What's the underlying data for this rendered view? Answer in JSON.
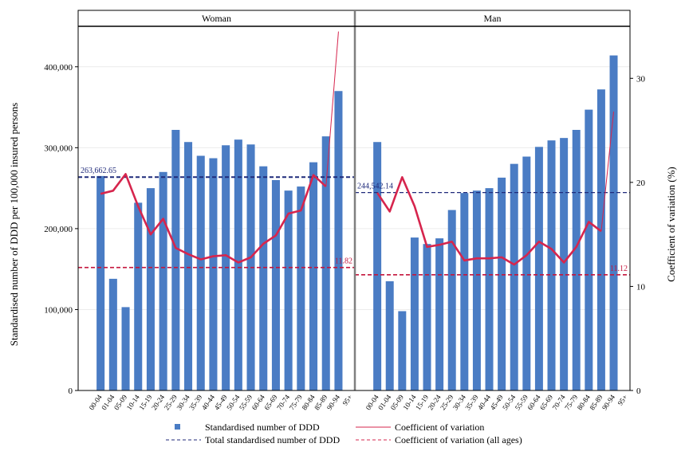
{
  "chart_data": {
    "type": "bar",
    "y_left_label": "Standardised number of DDD per 100,000 insured persons",
    "y_right_label": "Coefficient of variation (%)",
    "y_left_range": [
      0,
      450000
    ],
    "y_right_range": [
      0,
      35
    ],
    "y_left_ticks": [
      0,
      100000,
      200000,
      300000,
      400000
    ],
    "y_left_tick_labels": [
      "0",
      "100,000",
      "200,000",
      "300,000",
      "400,000"
    ],
    "y_right_ticks": [
      0,
      10,
      20,
      30
    ],
    "y_right_tick_labels": [
      "0",
      "10",
      "20",
      "30"
    ],
    "categories": [
      "00-04",
      "01-04",
      "05-09",
      "10-14",
      "15-19",
      "20-24",
      "25-29",
      "30-34",
      "35-39",
      "40-44",
      "45-49",
      "50-54",
      "55-59",
      "60-64",
      "65-69",
      "70-74",
      "75-79",
      "80-84",
      "85-89",
      "90-94",
      "95+"
    ],
    "panels": [
      {
        "title": "Woman",
        "bars": [
          265000,
          138000,
          103000,
          232000,
          250000,
          270000,
          322000,
          307000,
          290000,
          287000,
          303000,
          310000,
          304000,
          277000,
          260000,
          247000,
          252000,
          282000,
          314000,
          370000,
          null
        ],
        "cv": [
          18.9,
          19.2,
          20.8,
          17.7,
          15.0,
          16.5,
          13.7,
          13.1,
          12.6,
          12.9,
          13.0,
          12.3,
          12.8,
          14.1,
          14.9,
          17.0,
          17.3,
          20.7,
          19.6,
          34.5,
          null
        ],
        "total_ddd": 263662.65,
        "total_label": "263,662.65",
        "cv_all": 11.82,
        "cv_all_label": "11.82"
      },
      {
        "title": "Man",
        "bars": [
          307000,
          135000,
          98000,
          189000,
          181000,
          188000,
          223000,
          244000,
          247000,
          250000,
          263000,
          280000,
          289000,
          301000,
          309000,
          312000,
          322000,
          347000,
          372000,
          414000,
          null
        ],
        "cv": [
          19.0,
          17.2,
          20.5,
          17.7,
          13.8,
          14.0,
          14.3,
          12.5,
          12.7,
          12.7,
          12.8,
          12.1,
          13.0,
          14.3,
          13.6,
          12.3,
          13.8,
          16.2,
          15.3,
          26.8,
          null
        ],
        "total_ddd": 244542.14,
        "total_label": "244,542.14",
        "cv_all": 11.12,
        "cv_all_label": "11.12"
      }
    ],
    "legend": [
      {
        "label": "Standardised number of DDD",
        "kind": "bar",
        "color": "#4a7cc4"
      },
      {
        "label": "Coefficient of variation",
        "kind": "line",
        "color": "#d6254d"
      },
      {
        "label": "Total standardised number of DDD",
        "kind": "dash",
        "color": "#1f2a7a"
      },
      {
        "label": "Coefficient of variation (all ages)",
        "kind": "dash",
        "color": "#d6254d"
      }
    ],
    "colors": {
      "bar": "#4a7cc4",
      "cv_line": "#d6254d",
      "total_line": "#1f2a7a",
      "cv_all_line": "#c4143c"
    }
  }
}
